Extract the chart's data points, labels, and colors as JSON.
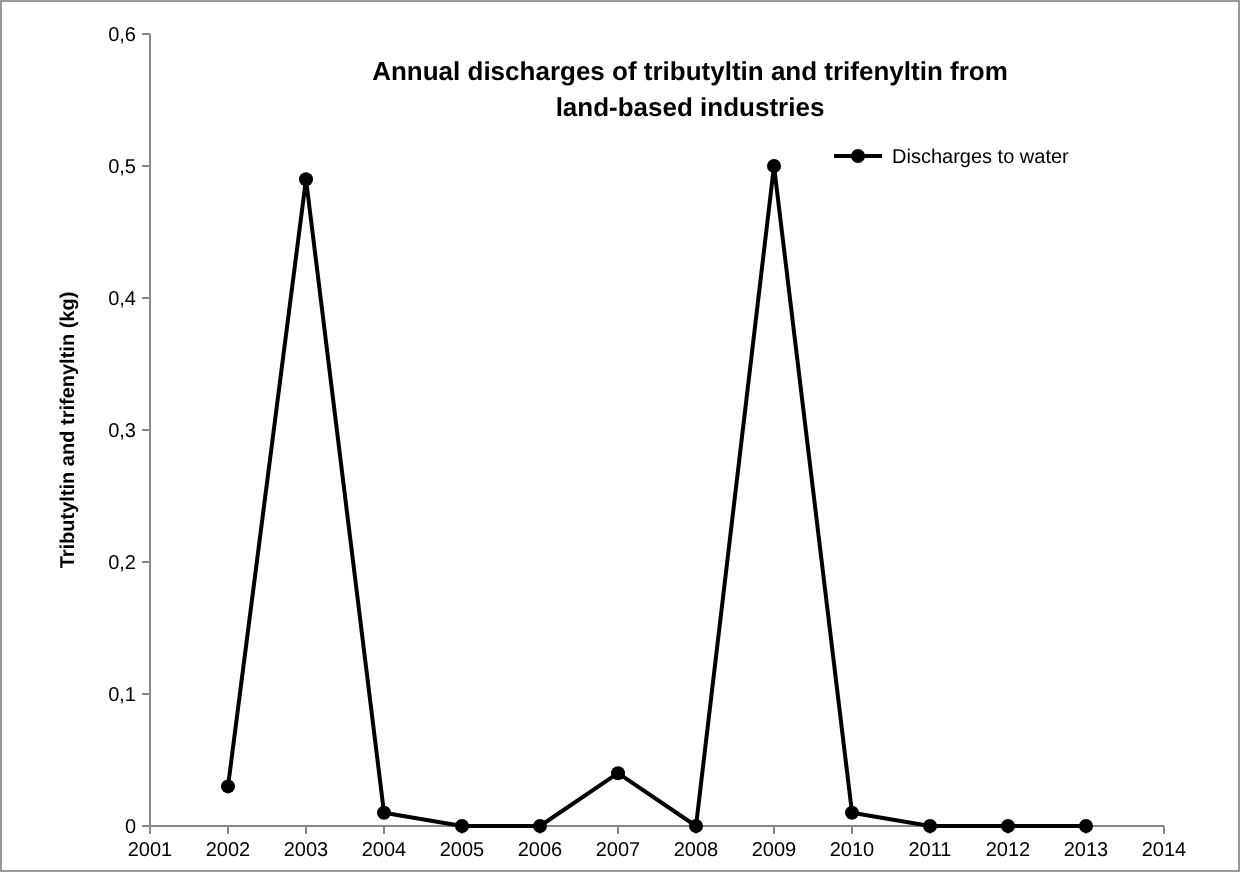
{
  "chart_data": {
    "type": "line",
    "title": "Annual discharges of tributyltin and trifenyltin from land-based industries",
    "ylabel": "Tributyltin and trifenyltin (kg)",
    "x": [
      2002,
      2003,
      2004,
      2005,
      2006,
      2007,
      2008,
      2009,
      2010,
      2011,
      2012,
      2013
    ],
    "series": [
      {
        "name": "Discharges to water",
        "color": "#000000",
        "values": [
          0.03,
          0.49,
          0.01,
          0,
          0,
          0.04,
          0,
          0.5,
          0.01,
          0,
          0,
          0
        ]
      }
    ],
    "xlim": [
      2001,
      2014
    ],
    "xticks": [
      2001,
      2002,
      2003,
      2004,
      2005,
      2006,
      2007,
      2008,
      2009,
      2010,
      2011,
      2012,
      2013,
      2014
    ],
    "ylim": [
      0,
      0.6
    ],
    "yticks": [
      0,
      {
        "value": 0.1,
        "label": "0,1"
      },
      {
        "value": 0.2,
        "label": "0,2"
      },
      {
        "value": 0.3,
        "label": "0,3"
      },
      {
        "value": 0.4,
        "label": "0,4"
      },
      {
        "value": 0.5,
        "label": "0,5"
      },
      {
        "value": 0.6,
        "label": "0,6"
      }
    ],
    "grid": false,
    "legend": "top right",
    "marker": "circle",
    "line_style": "solid"
  }
}
